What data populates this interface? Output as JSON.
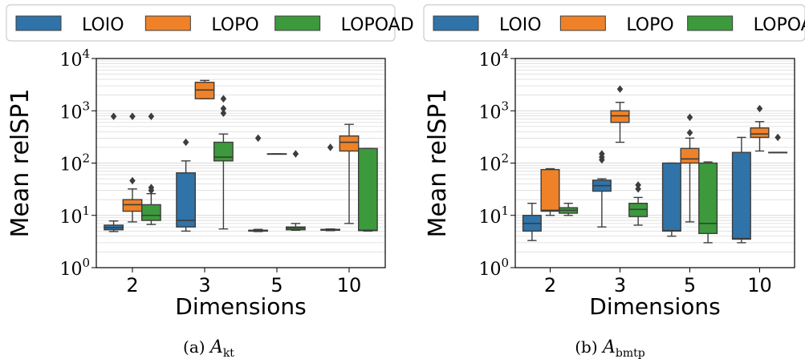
{
  "colors": {
    "LOIO": "#2f73a8",
    "LOPO": "#ef8228",
    "LOPOAD": "#3c9a3c",
    "box_edge": "#3d3d3d",
    "grid": "#d9d9d9"
  },
  "chart_data": [
    {
      "type": "box",
      "subcaption": "(a)",
      "caption_math": "A",
      "caption_sub": "kt",
      "xlabel": "Dimensions",
      "ylabel": "Mean relSP1",
      "yscale": "log",
      "ylim": [
        1,
        10000
      ],
      "ytick_base": "10",
      "ytick_exponents": [
        "0",
        "1",
        "2",
        "3",
        "4"
      ],
      "grid": true,
      "legend": {
        "placement": "top",
        "entries": [
          "LOIO",
          "LOPO",
          "LOPOAD"
        ]
      },
      "categories": [
        "2",
        "3",
        "5",
        "10"
      ],
      "series": [
        {
          "name": "LOIO",
          "boxes": [
            {
              "whislo": 4.9,
              "q1": 5.3,
              "med": 5.8,
              "q3": 6.5,
              "whishi": 7.8,
              "fliers": [
                780
              ]
            },
            {
              "whislo": 5.0,
              "q1": 6.0,
              "med": 8.0,
              "q3": 65,
              "whishi": 110,
              "fliers": [
                250
              ]
            },
            {
              "whislo": 4.9,
              "q1": 5.0,
              "med": 5.1,
              "q3": 5.2,
              "whishi": 5.4,
              "fliers": [
                300
              ]
            },
            {
              "whislo": 5.1,
              "q1": 5.2,
              "med": 5.3,
              "q3": 5.4,
              "whishi": 5.5,
              "fliers": [
                200
              ]
            }
          ]
        },
        {
          "name": "LOPO",
          "boxes": [
            {
              "whislo": 7.5,
              "q1": 12,
              "med": 16,
              "q3": 20,
              "whishi": 32,
              "fliers": [
                46,
                780
              ]
            },
            {
              "whislo": 1700,
              "q1": 1700,
              "med": 2500,
              "q3": 3500,
              "whishi": 3800,
              "fliers": []
            },
            {
              "whislo": 150,
              "q1": 150,
              "med": 150,
              "q3": 150,
              "whishi": 150,
              "fliers": []
            },
            {
              "whislo": 7.0,
              "q1": 170,
              "med": 250,
              "q3": 330,
              "whishi": 550,
              "fliers": []
            }
          ]
        },
        {
          "name": "LOPOAD",
          "boxes": [
            {
              "whislo": 6.7,
              "q1": 8.0,
              "med": 10,
              "q3": 16,
              "whishi": 26,
              "fliers": [
                30,
                34,
                780
              ]
            },
            {
              "whislo": 5.5,
              "q1": 110,
              "med": 130,
              "q3": 250,
              "whishi": 360,
              "fliers": [
                900,
                1100,
                1700
              ]
            },
            {
              "whislo": 5.2,
              "q1": 5.3,
              "med": 5.7,
              "q3": 6.0,
              "whishi": 7.0,
              "fliers": [
                150
              ]
            },
            {
              "whislo": 5.0,
              "q1": 5.1,
              "med": 5.2,
              "q3": 190,
              "whishi": 190,
              "fliers": []
            }
          ]
        }
      ]
    },
    {
      "type": "box",
      "subcaption": "(b)",
      "caption_math": "A",
      "caption_sub": "bmtp",
      "xlabel": "Dimensions",
      "ylabel": "Mean relSP1",
      "yscale": "log",
      "ylim": [
        1,
        10000
      ],
      "ytick_base": "10",
      "ytick_exponents": [
        "0",
        "1",
        "2",
        "3",
        "4"
      ],
      "grid": true,
      "legend": {
        "placement": "top",
        "entries": [
          "LOIO",
          "LOPO",
          "LOPOAD"
        ]
      },
      "categories": [
        "2",
        "3",
        "5",
        "10"
      ],
      "series": [
        {
          "name": "LOIO",
          "boxes": [
            {
              "whislo": 3.3,
              "q1": 5.0,
              "med": 7.0,
              "q3": 10,
              "whishi": 17,
              "fliers": []
            },
            {
              "whislo": 6.0,
              "q1": 29,
              "med": 37,
              "q3": 47,
              "whishi": 50,
              "fliers": [
                115,
                130,
                150
              ]
            },
            {
              "whislo": 4.0,
              "q1": 5.0,
              "med": 5.1,
              "q3": 100,
              "whishi": 100,
              "fliers": []
            },
            {
              "whislo": 3.0,
              "q1": 3.5,
              "med": 3.6,
              "q3": 160,
              "whishi": 310,
              "fliers": []
            }
          ]
        },
        {
          "name": "LOPO",
          "boxes": [
            {
              "whislo": 10,
              "q1": 12,
              "med": 12.5,
              "q3": 75,
              "whishi": 78,
              "fliers": []
            },
            {
              "whislo": 250,
              "q1": 600,
              "med": 800,
              "q3": 1000,
              "whishi": 1450,
              "fliers": [
                2600
              ]
            },
            {
              "whislo": 7.5,
              "q1": 100,
              "med": 120,
              "q3": 190,
              "whishi": 300,
              "fliers": [
                380,
                750
              ]
            },
            {
              "whislo": 170,
              "q1": 310,
              "med": 360,
              "q3": 470,
              "whishi": 620,
              "fliers": [
                1100
              ]
            }
          ]
        },
        {
          "name": "LOPOAD",
          "boxes": [
            {
              "whislo": 10,
              "q1": 11,
              "med": 12.5,
              "q3": 14,
              "whishi": 17,
              "fliers": []
            },
            {
              "whislo": 6.5,
              "q1": 9.5,
              "med": 13,
              "q3": 17,
              "whishi": 22,
              "fliers": [
                32,
                38
              ]
            },
            {
              "whislo": 3.0,
              "q1": 4.5,
              "med": 7.0,
              "q3": 100,
              "whishi": 105,
              "fliers": []
            },
            {
              "whislo": 160,
              "q1": 160,
              "med": 160,
              "q3": 160,
              "whishi": 160,
              "fliers": [
                310
              ]
            }
          ]
        }
      ]
    }
  ]
}
